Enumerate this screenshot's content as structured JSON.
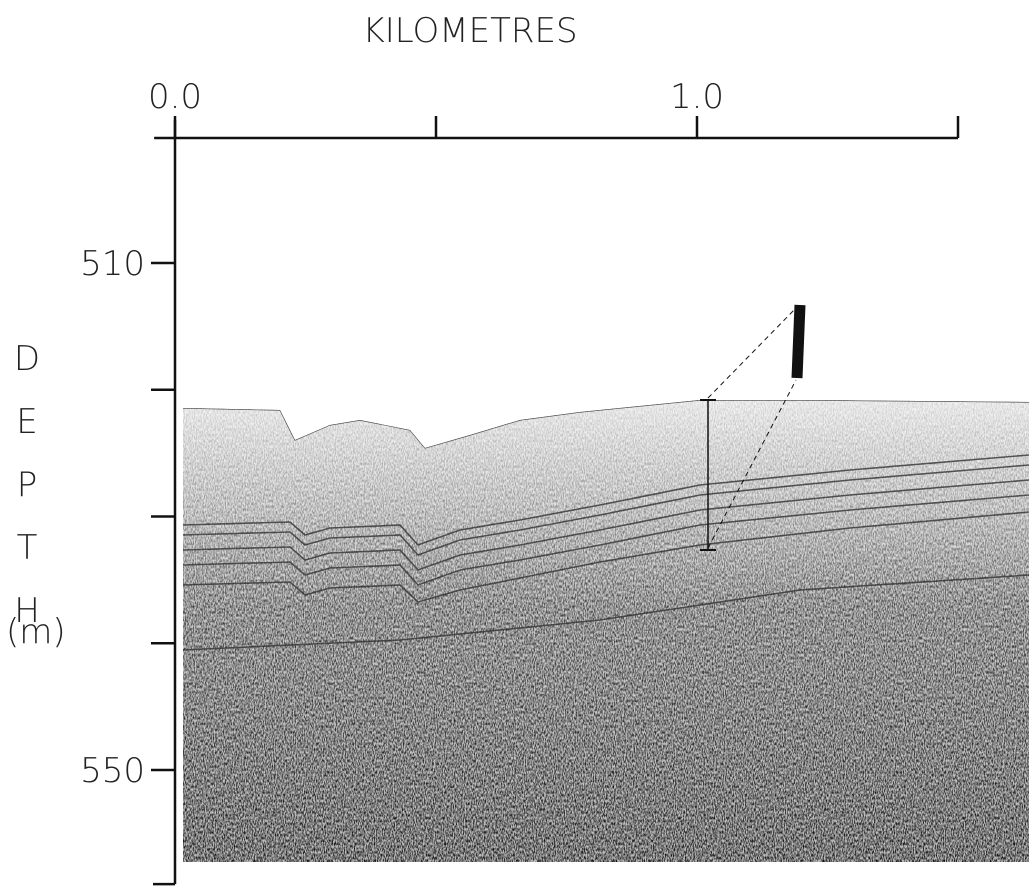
{
  "chart_data": {
    "type": "seismic-profile",
    "xlabel": "KILOMETRES",
    "ylabel": "DEPTH",
    "yunit": "(m)",
    "xlim": [
      -0.04,
      1.5
    ],
    "xticks": [
      {
        "value": 0,
        "label": "0.0"
      },
      {
        "value": 0.5,
        "label": null
      },
      {
        "value": 1,
        "label": "1.0"
      },
      {
        "value": 1.5,
        "label": null
      }
    ],
    "ylim": [
      500,
      559
    ],
    "yticks": [
      510,
      {
        "value": 520,
        "label": null
      },
      {
        "value": 530,
        "label": null
      },
      {
        "value": 540,
        "label": null
      },
      550
    ]
  }
}
